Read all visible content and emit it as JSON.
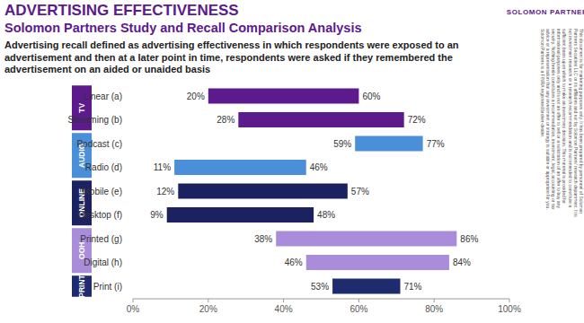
{
  "chart_data": {
    "type": "bar",
    "orientation": "horizontal",
    "title": "ADVERTISING EFFECTIVENESS",
    "subtitle": "Solomon Partners Study and Recall Comparison Analysis",
    "description": "Advertising recall defined as advertising effectiveness in which respondents were exposed to an advertisement and then at a later point in time, respondents were asked if they remembered the advertisement on an aided or unaided basis",
    "logo": "SOLOMON PARTNERS",
    "disclaimer": "This document is for marketing purposes only. It has been prepared by personnel of Solomon Partners Securities LLC or its affiliates and not by Solomon Partners' research department. It is not investment research or a research recommendation and is not intended to constitute a sufficient basis upon which to make an investment decision. This material is provided for informational purposes only and is not an offer to sell or a solicitation of an offer to buy any security. Nothing herein constitutes a recommendation, investment, legal, accounting or tax advice or a representation that any investment or strategy is suitable or appropriate for you. Solomon Partners is a FINRA registered broker-dealer.",
    "categories": [
      "Linear (a)",
      "Streaming (b)",
      "Podcast (c)",
      "Radio (d)",
      "Mobile (e)",
      "Desktop (f)",
      "Printed (g)",
      "Digital (h)",
      "Print (i)"
    ],
    "group_labels": [
      "TV",
      "TV",
      "AUDIO",
      "AUDIO",
      "ONLINE",
      "ONLINE",
      "OOH",
      "OOH",
      "PRINT"
    ],
    "values": [
      [
        20,
        60
      ],
      [
        28,
        72
      ],
      [
        59,
        77
      ],
      [
        11,
        46
      ],
      [
        12,
        57
      ],
      [
        9,
        48
      ],
      [
        38,
        86
      ],
      [
        46,
        84
      ],
      [
        53,
        71
      ]
    ],
    "value_labels": [
      [
        "20%",
        "60%"
      ],
      [
        "28%",
        "72%"
      ],
      [
        "59%",
        "77%"
      ],
      [
        "11%",
        "46%"
      ],
      [
        "12%",
        "57%"
      ],
      [
        "9%",
        "48%"
      ],
      [
        "38%",
        "86%"
      ],
      [
        "46%",
        "84%"
      ],
      [
        "53%",
        "71%"
      ]
    ],
    "colors": [
      "#5c1a8c",
      "#5c1a8c",
      "#4a8fd8",
      "#4a8fd8",
      "#1c2260",
      "#1c2260",
      "#a98ddb",
      "#a98ddb",
      "#1e2c6e"
    ],
    "data_labels": true,
    "grid": false,
    "xlim": [
      0,
      100
    ],
    "xticks": [
      {
        "value": 0,
        "label": "0%"
      },
      {
        "value": 20,
        "label": "20%"
      },
      {
        "value": 40,
        "label": "40%"
      },
      {
        "value": 60,
        "label": "60%"
      },
      {
        "value": 80,
        "label": "80%"
      },
      {
        "value": 100,
        "label": "100%"
      }
    ]
  }
}
